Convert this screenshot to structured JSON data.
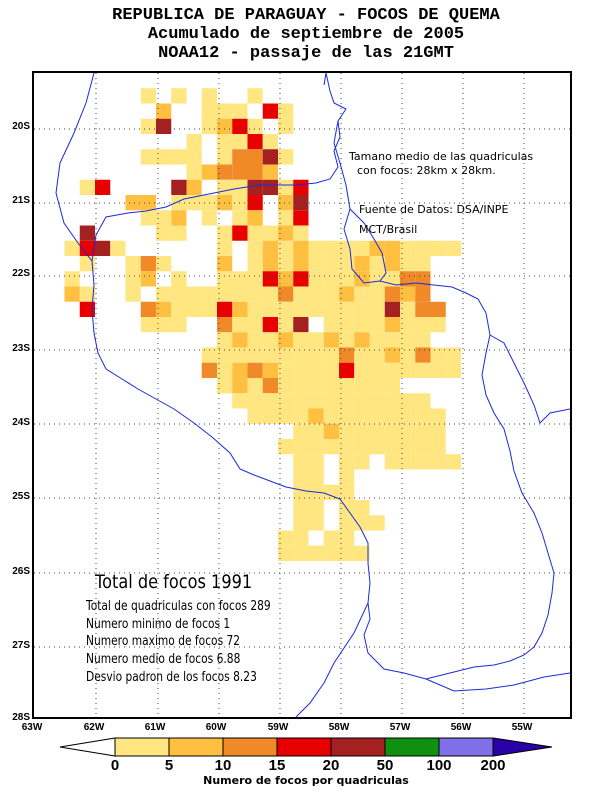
{
  "header": {
    "line1": "REPUBLICA DE PARAGUAY - FOCOS DE QUEMA",
    "line2": "Acumulado de septiembre de 2005",
    "line3": "NOAA12 - passaje de las 21GMT"
  },
  "notes": {
    "grid_size_1": "Tamano medio de las quadriculas",
    "grid_size_2": "con focos: 28km x 28km.",
    "source_1": "Fuente de Datos: DSA/INPE",
    "source_2": "MCT/Brasil"
  },
  "stats": {
    "total": "Total de focos 1991",
    "cells": "Total de quadriculas con focos 289",
    "min": "Numero minimo de focos 1",
    "max": "Numero maximo de focos 72",
    "mean": "Numero medio de focos 6.88",
    "std": "Desvio padron de los focos 8.23"
  },
  "axes": {
    "lat_labels": [
      "20S",
      "21S",
      "22S",
      "23S",
      "24S",
      "25S",
      "26S",
      "27S",
      "28S"
    ],
    "lon_labels": [
      "63W",
      "62W",
      "61W",
      "60W",
      "59W",
      "58W",
      "57W",
      "56W",
      "55W"
    ]
  },
  "colorbar": {
    "title": "Numero de focos por quadriculas",
    "tick_labels": [
      "0",
      "5",
      "10",
      "15",
      "20",
      "50",
      "100",
      "200"
    ],
    "colors": [
      "#ffe680",
      "#ffbf40",
      "#f08a28",
      "#e80000",
      "#a52020",
      "#109010",
      "#7f70e8",
      "#2a00a8"
    ]
  },
  "map_data": {
    "cells_note": "cell list as [row, col, class]; row 0 = top of map, col 0 = 63W edge; class 0..4 = colorbar bins",
    "cells": [
      [
        1,
        7,
        0
      ],
      [
        1,
        9,
        0
      ],
      [
        1,
        14,
        0
      ],
      [
        1,
        11,
        0
      ],
      [
        2,
        8,
        1
      ],
      [
        2,
        11,
        0
      ],
      [
        2,
        12,
        0
      ],
      [
        2,
        13,
        0
      ],
      [
        2,
        15,
        3
      ],
      [
        2,
        16,
        0
      ],
      [
        3,
        7,
        0
      ],
      [
        3,
        8,
        4
      ],
      [
        3,
        11,
        0
      ],
      [
        3,
        12,
        1
      ],
      [
        3,
        13,
        3
      ],
      [
        3,
        14,
        0
      ],
      [
        3,
        16,
        0
      ],
      [
        4,
        10,
        0
      ],
      [
        4,
        12,
        0
      ],
      [
        4,
        13,
        0
      ],
      [
        4,
        14,
        3
      ],
      [
        4,
        15,
        0
      ],
      [
        5,
        7,
        0
      ],
      [
        5,
        8,
        0
      ],
      [
        5,
        9,
        0
      ],
      [
        5,
        10,
        0
      ],
      [
        5,
        12,
        0
      ],
      [
        5,
        13,
        2
      ],
      [
        5,
        14,
        2
      ],
      [
        5,
        15,
        4
      ],
      [
        5,
        16,
        0
      ],
      [
        6,
        10,
        0
      ],
      [
        6,
        11,
        1
      ],
      [
        6,
        12,
        2
      ],
      [
        6,
        13,
        2
      ],
      [
        6,
        14,
        2
      ],
      [
        6,
        15,
        1
      ],
      [
        7,
        3,
        0
      ],
      [
        7,
        4,
        3
      ],
      [
        7,
        9,
        4
      ],
      [
        7,
        10,
        1
      ],
      [
        7,
        12,
        0
      ],
      [
        7,
        13,
        0
      ],
      [
        7,
        14,
        4
      ],
      [
        7,
        15,
        4
      ],
      [
        7,
        16,
        0
      ],
      [
        7,
        17,
        3
      ],
      [
        8,
        6,
        1
      ],
      [
        8,
        7,
        1
      ],
      [
        8,
        9,
        0
      ],
      [
        8,
        10,
        0
      ],
      [
        8,
        11,
        0
      ],
      [
        8,
        12,
        1
      ],
      [
        8,
        13,
        0
      ],
      [
        8,
        14,
        3
      ],
      [
        8,
        16,
        1
      ],
      [
        8,
        17,
        4
      ],
      [
        9,
        7,
        0
      ],
      [
        9,
        8,
        0
      ],
      [
        9,
        9,
        1
      ],
      [
        9,
        11,
        0
      ],
      [
        9,
        13,
        0
      ],
      [
        9,
        14,
        1
      ],
      [
        9,
        16,
        0
      ],
      [
        9,
        17,
        3
      ],
      [
        10,
        3,
        4
      ],
      [
        10,
        8,
        0
      ],
      [
        10,
        9,
        0
      ],
      [
        10,
        12,
        0
      ],
      [
        10,
        13,
        3
      ],
      [
        10,
        14,
        0
      ],
      [
        10,
        15,
        0
      ],
      [
        10,
        16,
        1
      ],
      [
        10,
        17,
        0
      ],
      [
        11,
        2,
        0
      ],
      [
        11,
        3,
        3
      ],
      [
        11,
        4,
        4
      ],
      [
        11,
        5,
        0
      ],
      [
        11,
        12,
        0
      ],
      [
        11,
        14,
        0
      ],
      [
        11,
        15,
        1
      ],
      [
        11,
        16,
        0
      ],
      [
        11,
        17,
        1
      ],
      [
        11,
        18,
        0
      ],
      [
        11,
        19,
        0
      ],
      [
        11,
        20,
        0
      ],
      [
        11,
        21,
        0
      ],
      [
        11,
        22,
        1
      ],
      [
        11,
        23,
        1
      ],
      [
        11,
        24,
        0
      ],
      [
        11,
        25,
        0
      ],
      [
        11,
        26,
        0
      ],
      [
        11,
        27,
        0
      ],
      [
        12,
        3,
        0
      ],
      [
        12,
        6,
        0
      ],
      [
        12,
        7,
        2
      ],
      [
        12,
        8,
        0
      ],
      [
        12,
        12,
        1
      ],
      [
        12,
        14,
        0
      ],
      [
        12,
        15,
        1
      ],
      [
        12,
        16,
        0
      ],
      [
        12,
        17,
        1
      ],
      [
        12,
        18,
        0
      ],
      [
        12,
        19,
        0
      ],
      [
        12,
        20,
        0
      ],
      [
        12,
        21,
        1
      ],
      [
        12,
        22,
        0
      ],
      [
        12,
        23,
        1
      ],
      [
        12,
        24,
        0
      ],
      [
        12,
        25,
        0
      ],
      [
        13,
        2,
        0
      ],
      [
        13,
        6,
        0
      ],
      [
        13,
        7,
        1
      ],
      [
        13,
        9,
        0
      ],
      [
        13,
        12,
        0
      ],
      [
        13,
        13,
        0
      ],
      [
        13,
        14,
        0
      ],
      [
        13,
        15,
        3
      ],
      [
        13,
        16,
        1
      ],
      [
        13,
        17,
        3
      ],
      [
        13,
        18,
        0
      ],
      [
        13,
        19,
        0
      ],
      [
        13,
        20,
        0
      ],
      [
        13,
        21,
        1
      ],
      [
        13,
        22,
        0
      ],
      [
        13,
        23,
        0
      ],
      [
        13,
        24,
        2
      ],
      [
        13,
        25,
        2
      ],
      [
        14,
        2,
        1
      ],
      [
        14,
        3,
        0
      ],
      [
        14,
        6,
        0
      ],
      [
        14,
        8,
        0
      ],
      [
        14,
        9,
        0
      ],
      [
        14,
        10,
        0
      ],
      [
        14,
        11,
        0
      ],
      [
        14,
        12,
        0
      ],
      [
        14,
        13,
        0
      ],
      [
        14,
        14,
        0
      ],
      [
        14,
        15,
        0
      ],
      [
        14,
        16,
        2
      ],
      [
        14,
        17,
        0
      ],
      [
        14,
        18,
        0
      ],
      [
        14,
        19,
        0
      ],
      [
        14,
        20,
        1
      ],
      [
        14,
        21,
        0
      ],
      [
        14,
        22,
        0
      ],
      [
        14,
        23,
        2
      ],
      [
        14,
        24,
        1
      ],
      [
        14,
        25,
        2
      ],
      [
        15,
        3,
        3
      ],
      [
        15,
        7,
        2
      ],
      [
        15,
        8,
        1
      ],
      [
        15,
        9,
        0
      ],
      [
        15,
        10,
        0
      ],
      [
        15,
        11,
        0
      ],
      [
        15,
        12,
        3
      ],
      [
        15,
        13,
        1
      ],
      [
        15,
        14,
        0
      ],
      [
        15,
        15,
        0
      ],
      [
        15,
        16,
        0
      ],
      [
        15,
        17,
        0
      ],
      [
        15,
        18,
        0
      ],
      [
        15,
        19,
        0
      ],
      [
        15,
        20,
        0
      ],
      [
        15,
        21,
        0
      ],
      [
        15,
        22,
        0
      ],
      [
        15,
        23,
        4
      ],
      [
        15,
        24,
        0
      ],
      [
        15,
        25,
        2
      ],
      [
        15,
        26,
        2
      ],
      [
        16,
        7,
        0
      ],
      [
        16,
        8,
        0
      ],
      [
        16,
        9,
        0
      ],
      [
        16,
        12,
        2
      ],
      [
        16,
        13,
        0
      ],
      [
        16,
        14,
        0
      ],
      [
        16,
        15,
        3
      ],
      [
        16,
        16,
        0
      ],
      [
        16,
        17,
        4
      ],
      [
        16,
        19,
        0
      ],
      [
        16,
        20,
        0
      ],
      [
        16,
        21,
        0
      ],
      [
        16,
        22,
        0
      ],
      [
        16,
        23,
        1
      ],
      [
        16,
        24,
        0
      ],
      [
        16,
        25,
        0
      ],
      [
        16,
        26,
        0
      ],
      [
        17,
        12,
        0
      ],
      [
        17,
        13,
        1
      ],
      [
        17,
        14,
        0
      ],
      [
        17,
        15,
        0
      ],
      [
        17,
        16,
        1
      ],
      [
        17,
        17,
        0
      ],
      [
        17,
        18,
        0
      ],
      [
        17,
        19,
        1
      ],
      [
        17,
        20,
        0
      ],
      [
        17,
        21,
        1
      ],
      [
        17,
        22,
        0
      ],
      [
        17,
        23,
        0
      ],
      [
        17,
        24,
        0
      ],
      [
        17,
        25,
        0
      ],
      [
        18,
        11,
        0
      ],
      [
        18,
        12,
        0
      ],
      [
        18,
        13,
        0
      ],
      [
        18,
        14,
        0
      ],
      [
        18,
        15,
        0
      ],
      [
        18,
        16,
        0
      ],
      [
        18,
        17,
        0
      ],
      [
        18,
        18,
        0
      ],
      [
        18,
        19,
        0
      ],
      [
        18,
        20,
        2
      ],
      [
        18,
        21,
        0
      ],
      [
        18,
        22,
        0
      ],
      [
        18,
        23,
        1
      ],
      [
        18,
        24,
        0
      ],
      [
        18,
        25,
        2
      ],
      [
        18,
        26,
        0
      ],
      [
        18,
        27,
        0
      ],
      [
        19,
        11,
        2
      ],
      [
        19,
        12,
        0
      ],
      [
        19,
        13,
        1
      ],
      [
        19,
        14,
        2
      ],
      [
        19,
        15,
        1
      ],
      [
        19,
        16,
        0
      ],
      [
        19,
        17,
        0
      ],
      [
        19,
        18,
        0
      ],
      [
        19,
        19,
        0
      ],
      [
        19,
        20,
        3
      ],
      [
        19,
        21,
        0
      ],
      [
        19,
        22,
        0
      ],
      [
        19,
        23,
        0
      ],
      [
        19,
        24,
        0
      ],
      [
        19,
        25,
        0
      ],
      [
        19,
        26,
        0
      ],
      [
        19,
        27,
        0
      ],
      [
        20,
        12,
        0
      ],
      [
        20,
        13,
        1
      ],
      [
        20,
        14,
        0
      ],
      [
        20,
        15,
        2
      ],
      [
        20,
        16,
        0
      ],
      [
        20,
        17,
        0
      ],
      [
        20,
        18,
        0
      ],
      [
        20,
        19,
        0
      ],
      [
        20,
        20,
        0
      ],
      [
        20,
        21,
        0
      ],
      [
        20,
        22,
        0
      ],
      [
        20,
        23,
        0
      ],
      [
        21,
        13,
        0
      ],
      [
        21,
        14,
        0
      ],
      [
        21,
        15,
        0
      ],
      [
        21,
        16,
        0
      ],
      [
        21,
        17,
        0
      ],
      [
        21,
        18,
        0
      ],
      [
        21,
        19,
        0
      ],
      [
        21,
        20,
        0
      ],
      [
        21,
        21,
        0
      ],
      [
        21,
        22,
        0
      ],
      [
        21,
        23,
        0
      ],
      [
        21,
        24,
        0
      ],
      [
        21,
        25,
        0
      ],
      [
        22,
        14,
        0
      ],
      [
        22,
        15,
        0
      ],
      [
        22,
        16,
        0
      ],
      [
        22,
        17,
        0
      ],
      [
        22,
        18,
        1
      ],
      [
        22,
        19,
        0
      ],
      [
        22,
        20,
        0
      ],
      [
        22,
        21,
        0
      ],
      [
        22,
        22,
        0
      ],
      [
        22,
        23,
        0
      ],
      [
        22,
        24,
        0
      ],
      [
        22,
        25,
        0
      ],
      [
        22,
        26,
        0
      ],
      [
        23,
        17,
        0
      ],
      [
        23,
        18,
        0
      ],
      [
        23,
        19,
        1
      ],
      [
        23,
        20,
        0
      ],
      [
        23,
        21,
        0
      ],
      [
        23,
        22,
        0
      ],
      [
        23,
        23,
        0
      ],
      [
        23,
        24,
        0
      ],
      [
        23,
        25,
        0
      ],
      [
        23,
        26,
        0
      ],
      [
        24,
        16,
        0
      ],
      [
        24,
        17,
        0
      ],
      [
        24,
        18,
        0
      ],
      [
        24,
        19,
        0
      ],
      [
        24,
        20,
        0
      ],
      [
        24,
        21,
        0
      ],
      [
        24,
        22,
        0
      ],
      [
        24,
        23,
        0
      ],
      [
        24,
        24,
        0
      ],
      [
        24,
        25,
        0
      ],
      [
        24,
        26,
        0
      ],
      [
        25,
        17,
        0
      ],
      [
        25,
        18,
        0
      ],
      [
        25,
        20,
        0
      ],
      [
        25,
        21,
        0
      ],
      [
        25,
        23,
        0
      ],
      [
        25,
        24,
        0
      ],
      [
        25,
        25,
        0
      ],
      [
        25,
        26,
        0
      ],
      [
        25,
        27,
        0
      ],
      [
        26,
        17,
        0
      ],
      [
        26,
        18,
        0
      ],
      [
        26,
        20,
        0
      ],
      [
        27,
        17,
        0
      ],
      [
        27,
        18,
        0
      ],
      [
        27,
        19,
        0
      ],
      [
        27,
        20,
        0
      ],
      [
        28,
        17,
        0
      ],
      [
        28,
        18,
        0
      ],
      [
        28,
        20,
        0
      ],
      [
        28,
        21,
        0
      ],
      [
        29,
        17,
        0
      ],
      [
        29,
        18,
        0
      ],
      [
        29,
        20,
        0
      ],
      [
        29,
        21,
        0
      ],
      [
        29,
        22,
        0
      ],
      [
        30,
        16,
        0
      ],
      [
        30,
        17,
        0
      ],
      [
        30,
        19,
        0
      ],
      [
        30,
        20,
        0
      ],
      [
        31,
        16,
        0
      ],
      [
        31,
        17,
        0
      ],
      [
        31,
        18,
        0
      ],
      [
        31,
        19,
        0
      ],
      [
        31,
        20,
        0
      ],
      [
        31,
        21,
        0
      ]
    ]
  }
}
